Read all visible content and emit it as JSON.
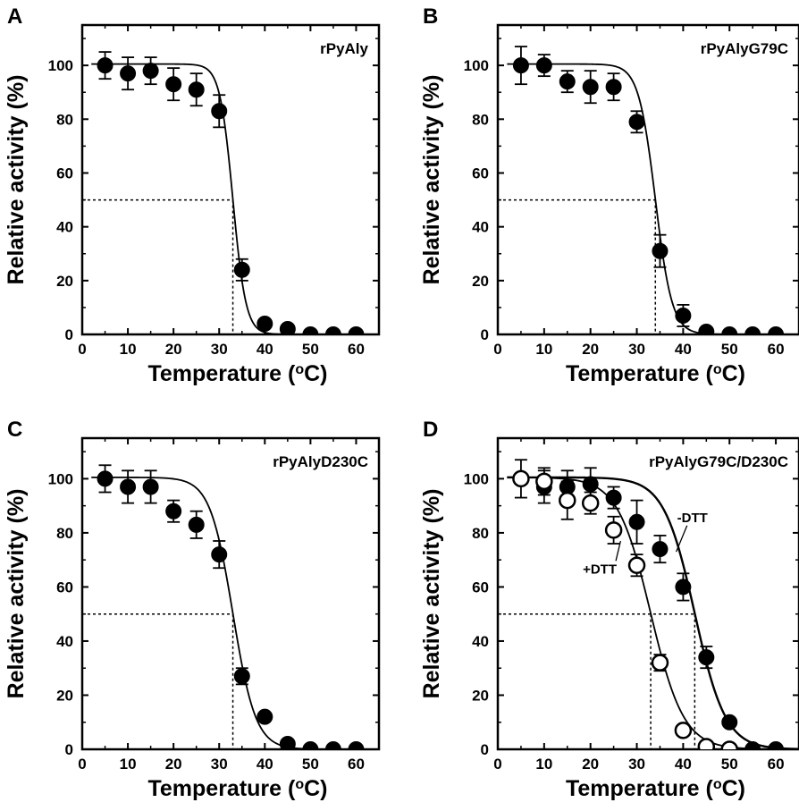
{
  "chart_data": [
    {
      "type": "scatter",
      "panel_label": "A",
      "title": "rPyAly",
      "xlabel": "Temperature (",
      "xlabel_sup": "o",
      "xlabel_tail": "C)",
      "ylabel": "Relative activity (%)",
      "xlim": [
        0,
        65
      ],
      "ylim": [
        0,
        115
      ],
      "xticks": [
        0,
        10,
        20,
        30,
        40,
        50,
        60
      ],
      "yticks": [
        0,
        20,
        40,
        60,
        80,
        100
      ],
      "grid": false,
      "series": [
        {
          "style": "filled",
          "x": [
            5,
            10,
            15,
            20,
            25,
            30,
            35,
            40,
            45,
            50,
            55,
            60
          ],
          "y": [
            100,
            97,
            98,
            93,
            91,
            83,
            24,
            4,
            2,
            0,
            0,
            0
          ],
          "err": [
            5,
            6,
            5,
            6,
            6,
            6,
            4,
            0,
            0,
            0,
            0,
            0
          ],
          "fit": {
            "t50": 33,
            "k": 0.7,
            "top": 100.5
          }
        }
      ],
      "reference_lines": {
        "y": 50,
        "x": [
          33
        ]
      },
      "annotations": []
    },
    {
      "type": "scatter",
      "panel_label": "B",
      "title": "rPyAlyG79C",
      "xlabel": "Temperature (",
      "xlabel_sup": "o",
      "xlabel_tail": "C)",
      "ylabel": "Relative activity (%)",
      "xlim": [
        0,
        65
      ],
      "ylim": [
        0,
        115
      ],
      "xticks": [
        0,
        10,
        20,
        30,
        40,
        50,
        60
      ],
      "yticks": [
        0,
        20,
        40,
        60,
        80,
        100
      ],
      "grid": false,
      "series": [
        {
          "style": "filled",
          "x": [
            5,
            10,
            15,
            20,
            25,
            30,
            35,
            40,
            45,
            50,
            55,
            60
          ],
          "y": [
            100,
            100,
            94,
            92,
            92,
            79,
            31,
            7,
            1,
            0,
            0,
            0
          ],
          "err": [
            7,
            4,
            4,
            6,
            5,
            4,
            6,
            4,
            0,
            0,
            0,
            0
          ],
          "fit": {
            "t50": 34,
            "k": 0.55,
            "top": 100.5
          }
        }
      ],
      "reference_lines": {
        "y": 50,
        "x": [
          34
        ]
      },
      "annotations": []
    },
    {
      "type": "scatter",
      "panel_label": "C",
      "title": "rPyAlyD230C",
      "xlabel": "Temperature (",
      "xlabel_sup": "o",
      "xlabel_tail": "C)",
      "ylabel": "Relative activity (%)",
      "xlim": [
        0,
        65
      ],
      "ylim": [
        0,
        115
      ],
      "xticks": [
        0,
        10,
        20,
        30,
        40,
        50,
        60
      ],
      "yticks": [
        0,
        20,
        40,
        60,
        80,
        100
      ],
      "grid": false,
      "series": [
        {
          "style": "filled",
          "x": [
            5,
            10,
            15,
            20,
            25,
            30,
            35,
            40,
            45,
            50,
            55,
            60
          ],
          "y": [
            100,
            97,
            97,
            88,
            83,
            72,
            27,
            12,
            2,
            0,
            0,
            0
          ],
          "err": [
            5,
            6,
            6,
            4,
            5,
            5,
            3,
            0,
            0,
            0,
            0,
            0
          ],
          "fit": {
            "t50": 33,
            "k": 0.4,
            "top": 100.5
          }
        }
      ],
      "reference_lines": {
        "y": 50,
        "x": [
          33
        ]
      },
      "annotations": []
    },
    {
      "type": "scatter",
      "panel_label": "D",
      "title": "rPyAlyG79C/D230C",
      "xlabel": "Temperature (",
      "xlabel_sup": "o",
      "xlabel_tail": "C)",
      "ylabel": "Relative activity (%)",
      "xlim": [
        0,
        65
      ],
      "ylim": [
        0,
        115
      ],
      "xticks": [
        0,
        10,
        20,
        30,
        40,
        50,
        60
      ],
      "yticks": [
        0,
        20,
        40,
        60,
        80,
        100
      ],
      "grid": false,
      "series": [
        {
          "style": "filled",
          "x": [
            5,
            10,
            15,
            20,
            25,
            30,
            35,
            40,
            45,
            50,
            55,
            60
          ],
          "y": [
            100,
            97,
            97,
            98,
            93,
            84,
            74,
            60,
            34,
            10,
            0,
            0
          ],
          "err": [
            7,
            6,
            6,
            6,
            4,
            8,
            5,
            5,
            4,
            0,
            0,
            0
          ],
          "fit": {
            "t50": 42.5,
            "k": 0.3,
            "top": 100.5
          }
        },
        {
          "style": "open",
          "x": [
            5,
            10,
            15,
            20,
            25,
            30,
            35,
            40,
            45,
            50
          ],
          "y": [
            100,
            99,
            92,
            91,
            81,
            68,
            32,
            7,
            1,
            0
          ],
          "err": [
            0,
            5,
            7,
            4,
            5,
            4,
            3,
            0,
            0,
            0
          ],
          "fit": {
            "t50": 33,
            "k": 0.28,
            "top": 100.5
          }
        }
      ],
      "reference_lines": {
        "y": 50,
        "x": [
          33,
          42.5
        ]
      },
      "annotations": [
        {
          "text": "-DTT",
          "x": 42,
          "y": 84,
          "to_x": 38.5,
          "to_y": 73
        },
        {
          "text": "+DTT",
          "x": 22,
          "y": 65,
          "to_x": 26.5,
          "to_y": 77
        }
      ]
    }
  ]
}
